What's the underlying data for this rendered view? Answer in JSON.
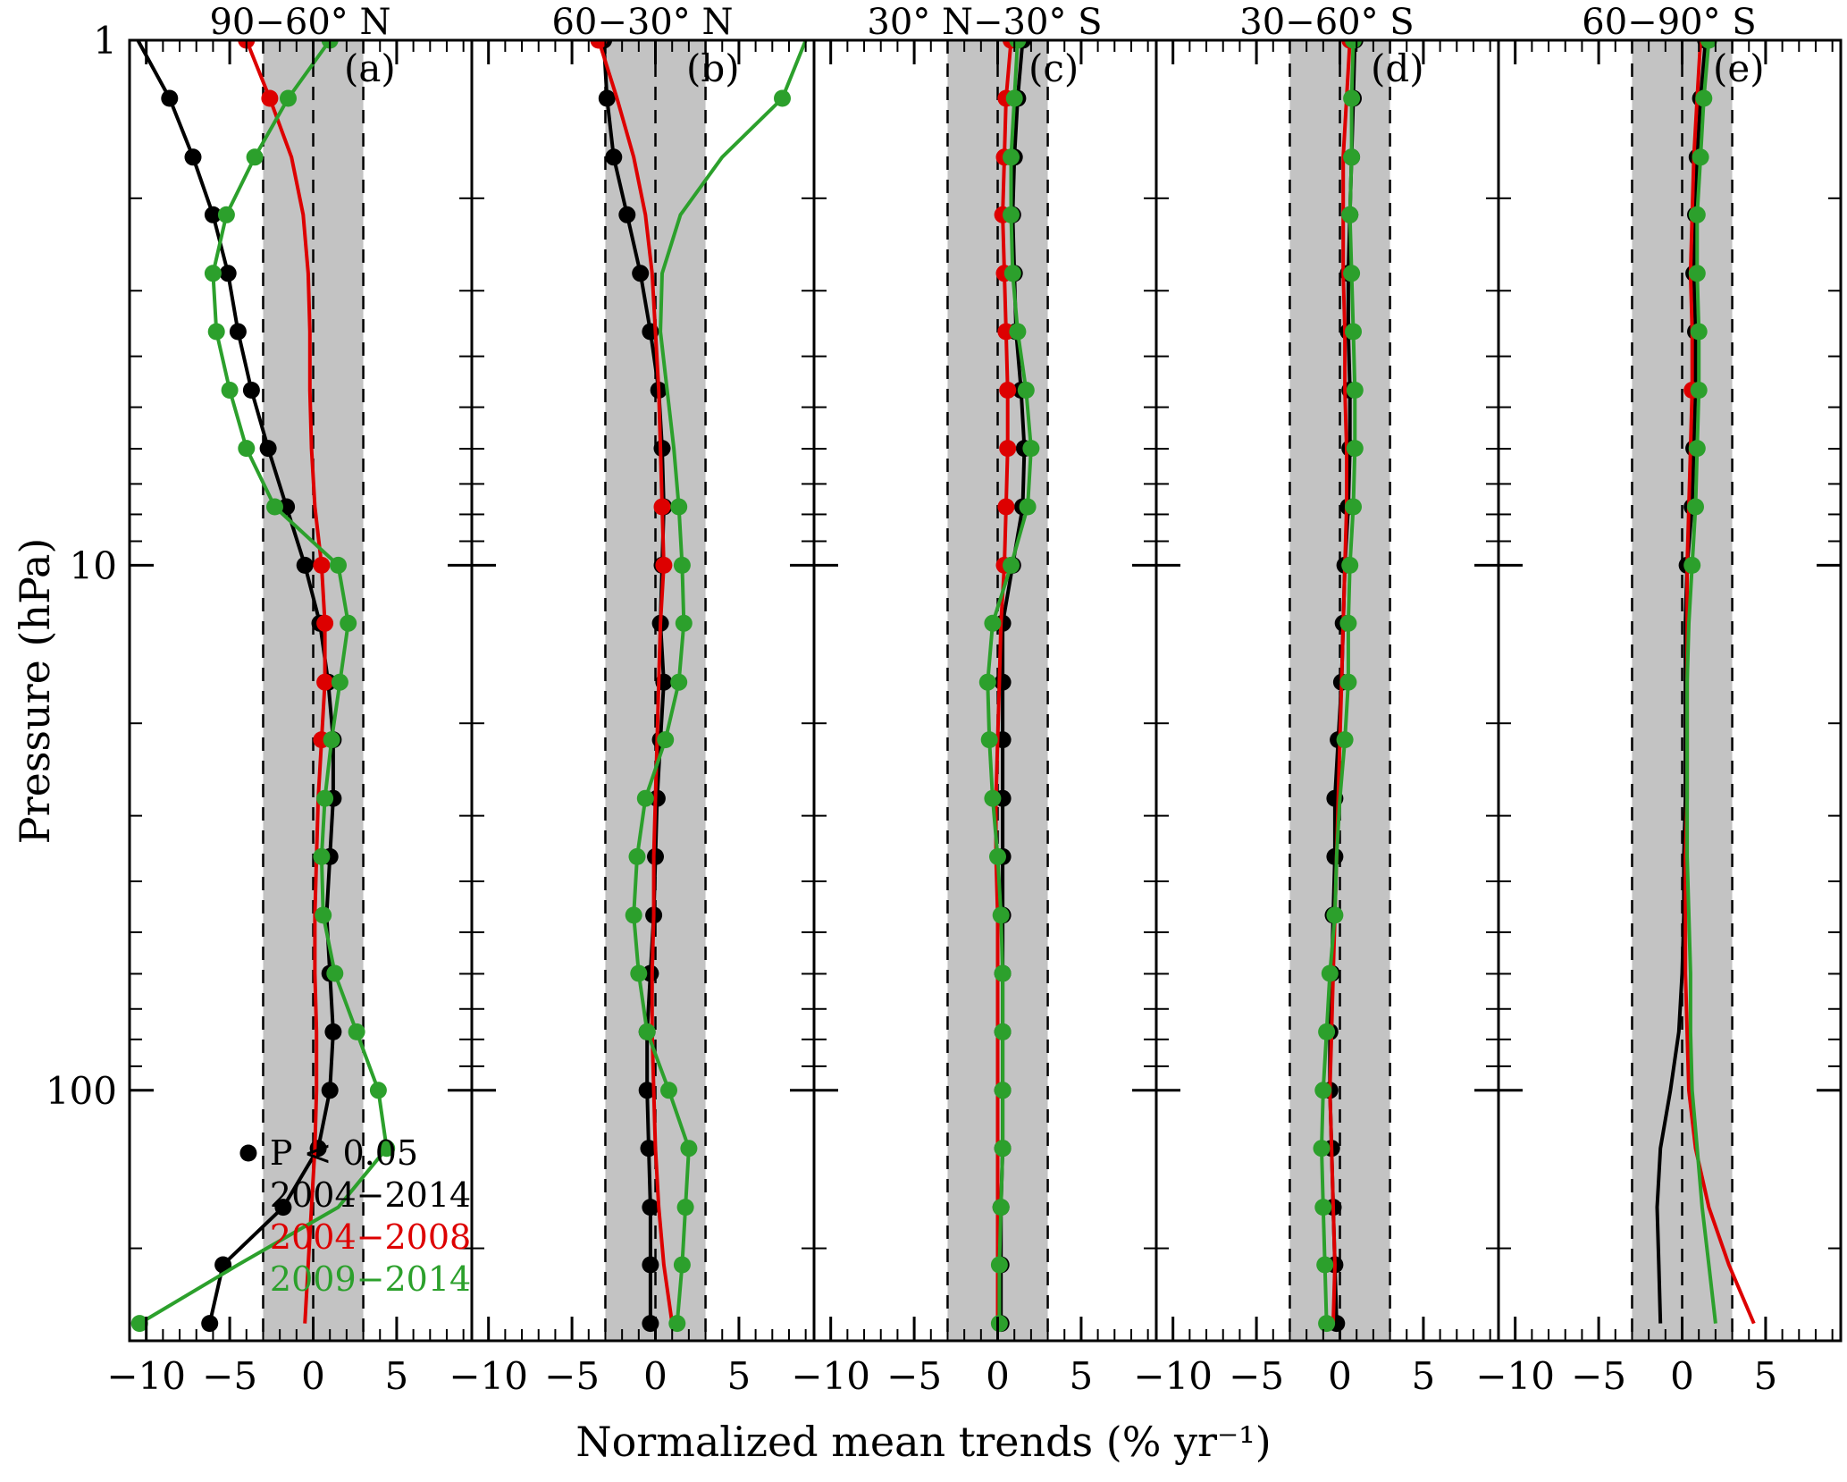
{
  "figure": {
    "xlabel": "Normalized mean trends (% yr⁻¹)",
    "ylabel": "Pressure (hPa)"
  },
  "legend": {
    "items": [
      {
        "label": "P < 0.05",
        "color": "#000000",
        "marker": 1
      },
      {
        "label": "2004−2014",
        "color": "#000000",
        "marker": 0
      },
      {
        "label": "2004−2008",
        "color": "#dd0000",
        "marker": 0
      },
      {
        "label": "2009−2014",
        "color": "#2ca02c",
        "marker": 0
      }
    ]
  },
  "chart_data": {
    "type": "line",
    "title": "",
    "xlabel": "Normalized mean trends (% yr⁻¹)",
    "ylabel": "Pressure (hPa)",
    "xlim": [
      -11,
      9.5
    ],
    "ylim": [
      1,
      300
    ],
    "y_scale": "log",
    "y_axis_inverted_downward": true,
    "xticks": [
      -10,
      -5,
      0,
      5
    ],
    "yticks": [
      1,
      10,
      100
    ],
    "grid": false,
    "shaded_band": {
      "xmin": -3,
      "xmax": 3,
      "color": "#c3c3c3"
    },
    "dashed_reference_lines": [
      -3,
      0,
      3
    ],
    "significance_marker": "P < 0.05",
    "series_names": [
      "2004−2014",
      "2004−2008",
      "2009−2014"
    ],
    "series_colors": [
      "#000000",
      "#dd0000",
      "#2ca02c"
    ],
    "pressure_hPa": [
      1.0,
      1.29,
      1.67,
      2.15,
      2.78,
      3.59,
      4.64,
      5.99,
      7.74,
      10.0,
      12.9,
      16.7,
      21.5,
      27.8,
      35.9,
      46.4,
      59.9,
      77.4,
      100,
      129,
      167,
      215,
      278
    ],
    "panels": [
      {
        "label": "(a)",
        "title": "90−60° N",
        "series": [
          {
            "name": "2004−2014",
            "values": [
              -10.5,
              -8.6,
              -7.2,
              -6.0,
              -5.1,
              -4.5,
              -3.7,
              -2.7,
              -1.6,
              -0.5,
              0.4,
              0.9,
              1.2,
              1.2,
              1.0,
              0.8,
              1.0,
              1.2,
              1.0,
              0.3,
              -1.8,
              -5.4,
              -6.2
            ],
            "significant": [
              0,
              1,
              1,
              1,
              1,
              1,
              1,
              1,
              1,
              1,
              1,
              1,
              1,
              1,
              1,
              0,
              1,
              1,
              1,
              1,
              1,
              1,
              1
            ]
          },
          {
            "name": "2004−2008",
            "values": [
              -4.0,
              -2.6,
              -1.3,
              -0.6,
              -0.3,
              -0.2,
              -0.2,
              -0.1,
              0.1,
              0.5,
              0.7,
              0.7,
              0.5,
              0.3,
              0.2,
              0.1,
              0.1,
              0.2,
              0.2,
              0.1,
              -0.1,
              -0.3,
              -0.5
            ],
            "significant": [
              1,
              1,
              0,
              0,
              0,
              0,
              0,
              0,
              0,
              1,
              1,
              1,
              1,
              0,
              0,
              0,
              0,
              0,
              0,
              0,
              0,
              0,
              0
            ]
          },
          {
            "name": "2009−2014",
            "values": [
              1.0,
              -1.5,
              -3.5,
              -5.2,
              -6.0,
              -5.8,
              -5.0,
              -4.0,
              -2.3,
              1.5,
              2.1,
              1.6,
              1.1,
              0.7,
              0.5,
              0.6,
              1.3,
              2.6,
              3.9,
              4.4,
              1.5,
              -4.5,
              -10.4
            ],
            "significant": [
              1,
              1,
              1,
              1,
              1,
              1,
              1,
              1,
              1,
              1,
              1,
              1,
              1,
              1,
              1,
              1,
              1,
              1,
              1,
              1,
              0,
              0,
              1
            ]
          }
        ]
      },
      {
        "label": "(b)",
        "title": "60−30° N",
        "series": [
          {
            "name": "2004−2014",
            "values": [
              -3.1,
              -2.9,
              -2.5,
              -1.7,
              -0.9,
              -0.3,
              0.2,
              0.4,
              0.5,
              0.4,
              0.3,
              0.5,
              0.3,
              0.1,
              0.0,
              -0.1,
              -0.3,
              -0.5,
              -0.5,
              -0.4,
              -0.3,
              -0.3,
              -0.3
            ],
            "significant": [
              1,
              1,
              1,
              1,
              1,
              1,
              1,
              1,
              1,
              1,
              1,
              1,
              1,
              1,
              1,
              1,
              1,
              1,
              1,
              1,
              1,
              1,
              1
            ]
          },
          {
            "name": "2004−2008",
            "values": [
              -3.4,
              -2.3,
              -1.3,
              -0.6,
              -0.2,
              0.0,
              0.2,
              0.3,
              0.4,
              0.5,
              0.3,
              0.2,
              0.1,
              0.0,
              -0.1,
              -0.1,
              -0.2,
              -0.2,
              -0.1,
              0.0,
              0.2,
              0.5,
              1.0
            ],
            "significant": [
              1,
              0,
              0,
              0,
              0,
              0,
              0,
              0,
              1,
              1,
              0,
              0,
              0,
              0,
              0,
              0,
              0,
              0,
              0,
              0,
              0,
              0,
              0
            ]
          },
          {
            "name": "2009−2014",
            "values": [
              9.0,
              7.6,
              4.0,
              1.5,
              0.4,
              0.3,
              0.7,
              1.1,
              1.4,
              1.6,
              1.7,
              1.4,
              0.6,
              -0.6,
              -1.1,
              -1.3,
              -1.0,
              -0.5,
              0.8,
              2.0,
              1.8,
              1.6,
              1.3
            ],
            "significant": [
              0,
              1,
              0,
              0,
              0,
              0,
              0,
              0,
              1,
              1,
              1,
              1,
              1,
              1,
              1,
              1,
              1,
              1,
              1,
              1,
              1,
              1,
              1
            ]
          }
        ]
      },
      {
        "label": "(c)",
        "title": "30° N−30° S",
        "series": [
          {
            "name": "2004−2014",
            "values": [
              1.5,
              1.2,
              1.0,
              0.9,
              1.0,
              1.1,
              1.4,
              1.6,
              1.5,
              0.9,
              0.3,
              0.3,
              0.3,
              0.3,
              0.3,
              0.3,
              0.3,
              0.3,
              0.3,
              0.3,
              0.2,
              0.2,
              0.2
            ],
            "significant": [
              1,
              1,
              1,
              1,
              1,
              1,
              1,
              1,
              1,
              1,
              1,
              1,
              1,
              1,
              1,
              1,
              1,
              1,
              1,
              1,
              1,
              1,
              1
            ]
          },
          {
            "name": "2004−2008",
            "values": [
              0.8,
              0.5,
              0.4,
              0.3,
              0.4,
              0.5,
              0.6,
              0.6,
              0.5,
              0.4,
              0.2,
              0.1,
              0.0,
              -0.1,
              -0.1,
              0.0,
              0.0,
              0.0,
              0.0,
              0.0,
              0.0,
              0.0,
              0.0
            ],
            "significant": [
              1,
              1,
              1,
              1,
              1,
              1,
              1,
              1,
              1,
              1,
              0,
              0,
              0,
              0,
              0,
              0,
              0,
              0,
              0,
              0,
              0,
              0,
              0
            ]
          },
          {
            "name": "2009−2014",
            "values": [
              1.2,
              1.0,
              0.8,
              0.8,
              0.9,
              1.2,
              1.7,
              2.0,
              1.8,
              0.8,
              -0.3,
              -0.6,
              -0.5,
              -0.3,
              0.0,
              0.2,
              0.3,
              0.3,
              0.3,
              0.3,
              0.2,
              0.1,
              0.1
            ],
            "significant": [
              1,
              1,
              1,
              1,
              1,
              1,
              1,
              1,
              1,
              1,
              1,
              1,
              1,
              1,
              1,
              1,
              1,
              1,
              1,
              1,
              1,
              1,
              1
            ]
          }
        ]
      },
      {
        "label": "(d)",
        "title": "30−60° S",
        "series": [
          {
            "name": "2004−2014",
            "values": [
              0.9,
              0.8,
              0.7,
              0.6,
              0.5,
              0.5,
              0.6,
              0.6,
              0.5,
              0.3,
              0.2,
              0.1,
              -0.1,
              -0.3,
              -0.3,
              -0.4,
              -0.5,
              -0.6,
              -0.6,
              -0.5,
              -0.4,
              -0.3,
              -0.2
            ],
            "significant": [
              1,
              1,
              1,
              1,
              1,
              1,
              1,
              1,
              1,
              1,
              1,
              1,
              1,
              1,
              1,
              1,
              1,
              1,
              1,
              1,
              1,
              1,
              1
            ]
          },
          {
            "name": "2004−2008",
            "values": [
              0.6,
              0.4,
              0.2,
              0.2,
              0.2,
              0.3,
              0.3,
              0.4,
              0.4,
              0.3,
              0.2,
              0.1,
              0.0,
              -0.1,
              -0.2,
              -0.3,
              -0.4,
              -0.5,
              -0.6,
              -0.5,
              -0.4,
              -0.3,
              -0.4
            ],
            "significant": [
              1,
              0,
              0,
              0,
              0,
              0,
              0,
              0,
              0,
              0,
              0,
              0,
              0,
              0,
              0,
              0,
              0,
              0,
              0,
              0,
              0,
              0,
              0
            ]
          },
          {
            "name": "2009−2014",
            "values": [
              0.8,
              0.7,
              0.7,
              0.6,
              0.7,
              0.8,
              0.9,
              0.9,
              0.8,
              0.6,
              0.5,
              0.5,
              0.3,
              0.0,
              -0.2,
              -0.3,
              -0.6,
              -0.8,
              -1.0,
              -1.1,
              -1.0,
              -0.9,
              -0.8
            ],
            "significant": [
              1,
              1,
              1,
              1,
              1,
              1,
              1,
              1,
              1,
              1,
              1,
              1,
              1,
              0,
              0,
              1,
              1,
              1,
              1,
              1,
              1,
              1,
              1
            ]
          }
        ]
      },
      {
        "label": "(e)",
        "title": "60−90° S",
        "series": [
          {
            "name": "2004−2014",
            "values": [
              1.4,
              1.1,
              0.9,
              0.8,
              0.7,
              0.8,
              0.8,
              0.7,
              0.6,
              0.3,
              0.2,
              0.2,
              0.2,
              0.2,
              0.1,
              0.1,
              0.0,
              -0.2,
              -0.7,
              -1.3,
              -1.5,
              -1.4,
              -1.3
            ],
            "significant": [
              1,
              1,
              1,
              1,
              1,
              1,
              1,
              1,
              1,
              1,
              0,
              0,
              0,
              0,
              0,
              0,
              0,
              0,
              0,
              0,
              0,
              0,
              0
            ]
          },
          {
            "name": "2004−2008",
            "values": [
              1.1,
              0.9,
              0.7,
              0.6,
              0.5,
              0.6,
              0.6,
              0.5,
              0.4,
              0.3,
              0.3,
              0.3,
              0.3,
              0.3,
              0.2,
              0.2,
              0.2,
              0.3,
              0.4,
              0.8,
              1.6,
              2.8,
              4.3
            ],
            "significant": [
              0,
              0,
              0,
              0,
              0,
              0,
              1,
              0,
              0,
              0,
              0,
              0,
              0,
              0,
              0,
              0,
              0,
              0,
              0,
              0,
              0,
              0,
              0
            ]
          },
          {
            "name": "2009−2014",
            "values": [
              1.6,
              1.3,
              1.1,
              0.9,
              0.9,
              1.0,
              1.0,
              0.9,
              0.8,
              0.6,
              0.4,
              0.3,
              0.3,
              0.3,
              0.3,
              0.4,
              0.5,
              0.5,
              0.6,
              0.9,
              1.2,
              1.6,
              2.0
            ],
            "significant": [
              1,
              1,
              1,
              1,
              1,
              1,
              1,
              1,
              1,
              1,
              0,
              0,
              0,
              0,
              0,
              0,
              0,
              0,
              0,
              0,
              0,
              0,
              0
            ]
          }
        ]
      }
    ]
  }
}
